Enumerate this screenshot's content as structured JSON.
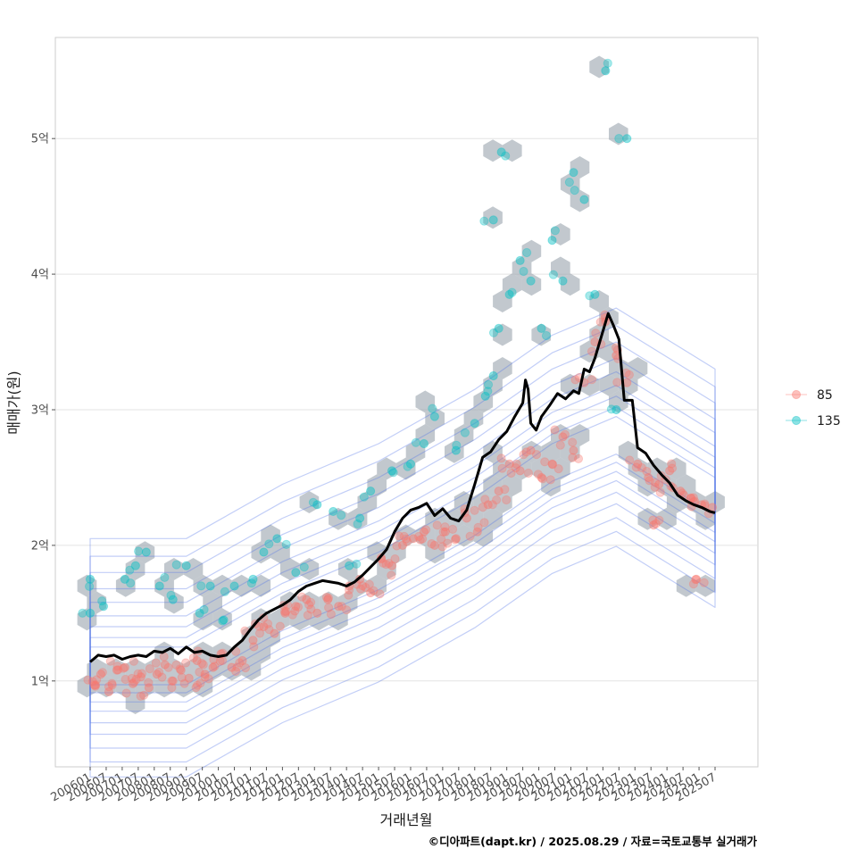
{
  "chart_data": {
    "type": "scatter",
    "xlabel": "거래년월",
    "ylabel": "매매가(원)",
    "caption": "©디아파트(dapt.kr) / 2025.08.29 / 자료=국토교통부 실거래가",
    "x_start": "2006-01",
    "x_end": "2025-07",
    "x_ticks": [
      "200601",
      "200607",
      "200701",
      "200707",
      "200801",
      "200807",
      "200901",
      "200907",
      "201001",
      "201007",
      "201101",
      "201107",
      "201201",
      "201207",
      "201301",
      "201307",
      "201401",
      "201407",
      "201501",
      "201507",
      "201601",
      "201607",
      "201701",
      "201707",
      "201801",
      "201807",
      "201901",
      "201907",
      "202001",
      "202007",
      "202101",
      "202107",
      "202201",
      "202207",
      "202301",
      "202307",
      "202401",
      "202407",
      "202501",
      "202507"
    ],
    "y_ticks": [
      {
        "value": 1,
        "label": "1억"
      },
      {
        "value": 2,
        "label": "2억"
      },
      {
        "value": 3,
        "label": "3억"
      },
      {
        "value": 4,
        "label": "4억"
      },
      {
        "value": 5,
        "label": "5억"
      }
    ],
    "ylim": [
      0.34,
      5.74
    ],
    "ylim_note": "values in 억원",
    "grid": "horizontal",
    "legend_position": "right",
    "series": [
      {
        "name": "85",
        "color": "#F8766D",
        "kind": "points",
        "points": [
          [
            "2006-03",
            0.97
          ],
          [
            "2006-05",
            1.05
          ],
          [
            "2006-08",
            0.92
          ],
          [
            "2006-11",
            1.08
          ],
          [
            "2007-02",
            1.1
          ],
          [
            "2007-05",
            0.98
          ],
          [
            "2007-08",
            1.03
          ],
          [
            "2007-11",
            0.95
          ],
          [
            "2008-02",
            1.05
          ],
          [
            "2008-05",
            1.12
          ],
          [
            "2008-08",
            1.0
          ],
          [
            "2008-11",
            1.08
          ],
          [
            "2009-02",
            1.02
          ],
          [
            "2009-05",
            1.15
          ],
          [
            "2009-08",
            1.05
          ],
          [
            "2009-11",
            1.1
          ],
          [
            "2010-02",
            1.2
          ],
          [
            "2010-06",
            1.1
          ],
          [
            "2010-10",
            1.15
          ],
          [
            "2011-02",
            1.3
          ],
          [
            "2011-06",
            1.4
          ],
          [
            "2011-10",
            1.35
          ],
          [
            "2012-02",
            1.5
          ],
          [
            "2012-06",
            1.55
          ],
          [
            "2012-10",
            1.6
          ],
          [
            "2013-02",
            1.5
          ],
          [
            "2013-06",
            1.6
          ],
          [
            "2013-10",
            1.55
          ],
          [
            "2014-02",
            1.7
          ],
          [
            "2014-06",
            1.75
          ],
          [
            "2014-10",
            1.65
          ],
          [
            "2015-02",
            1.9
          ],
          [
            "2015-06",
            1.85
          ],
          [
            "2015-10",
            2.0
          ],
          [
            "2016-02",
            2.05
          ],
          [
            "2016-06",
            2.1
          ],
          [
            "2016-10",
            2.0
          ],
          [
            "2017-02",
            2.1
          ],
          [
            "2017-06",
            2.05
          ],
          [
            "2017-10",
            2.2
          ],
          [
            "2018-02",
            2.1
          ],
          [
            "2018-06",
            2.3
          ],
          [
            "2018-10",
            2.4
          ],
          [
            "2019-02",
            2.6
          ],
          [
            "2019-06",
            2.55
          ],
          [
            "2019-10",
            2.7
          ],
          [
            "2020-02",
            2.5
          ],
          [
            "2020-06",
            2.6
          ],
          [
            "2020-10",
            2.8
          ],
          [
            "2021-02",
            2.7
          ],
          [
            "2021-06",
            3.2
          ],
          [
            "2021-10",
            3.5
          ],
          [
            "2022-02",
            3.65
          ],
          [
            "2022-06",
            3.4
          ],
          [
            "2022-10",
            3.2
          ],
          [
            "2023-02",
            2.6
          ],
          [
            "2023-06",
            2.5
          ],
          [
            "2023-10",
            2.45
          ],
          [
            "2024-02",
            2.55
          ],
          [
            "2024-06",
            2.4
          ],
          [
            "2024-10",
            2.35
          ],
          [
            "2025-02",
            2.3
          ],
          [
            "2025-06",
            2.28
          ],
          [
            "2024-12",
            1.75
          ],
          [
            "2023-08",
            2.15
          ]
        ]
      },
      {
        "name": "135",
        "color": "#00BFC4",
        "kind": "points",
        "points": [
          [
            "2006-01",
            1.75
          ],
          [
            "2006-01",
            1.5
          ],
          [
            "2006-06",
            1.55
          ],
          [
            "2007-02",
            1.75
          ],
          [
            "2007-06",
            1.85
          ],
          [
            "2007-10",
            1.95
          ],
          [
            "2008-03",
            1.7
          ],
          [
            "2008-08",
            1.6
          ],
          [
            "2009-01",
            1.85
          ],
          [
            "2009-06",
            1.5
          ],
          [
            "2009-10",
            1.7
          ],
          [
            "2010-03",
            1.45
          ],
          [
            "2010-07",
            1.7
          ],
          [
            "2011-02",
            1.75
          ],
          [
            "2011-06",
            1.95
          ],
          [
            "2011-11",
            2.05
          ],
          [
            "2012-06",
            1.8
          ],
          [
            "2013-02",
            2.3
          ],
          [
            "2013-08",
            2.25
          ],
          [
            "2014-02",
            1.85
          ],
          [
            "2014-06",
            2.2
          ],
          [
            "2014-10",
            2.4
          ],
          [
            "2015-06",
            2.55
          ],
          [
            "2016-01",
            2.6
          ],
          [
            "2016-06",
            2.75
          ],
          [
            "2016-10",
            2.95
          ],
          [
            "2017-06",
            2.7
          ],
          [
            "2018-01",
            2.9
          ],
          [
            "2018-05",
            3.1
          ],
          [
            "2018-08",
            3.25
          ],
          [
            "2018-10",
            3.6
          ],
          [
            "2019-02",
            3.85
          ],
          [
            "2019-06",
            4.1
          ],
          [
            "2019-10",
            3.95
          ],
          [
            "2020-02",
            3.6
          ],
          [
            "2020-06",
            4.25
          ],
          [
            "2020-10",
            3.95
          ],
          [
            "2021-02",
            4.75
          ],
          [
            "2021-06",
            4.55
          ],
          [
            "2021-10",
            3.85
          ],
          [
            "2022-02",
            5.5
          ],
          [
            "2022-06",
            3.0
          ],
          [
            "2022-10",
            5.0
          ],
          [
            "2018-08",
            4.4
          ],
          [
            "2018-11",
            4.9
          ]
        ]
      },
      {
        "name": "median",
        "color": "#000000",
        "kind": "line",
        "points": [
          [
            "2006-01",
            1.14
          ],
          [
            "2006-04",
            1.19
          ],
          [
            "2006-07",
            1.18
          ],
          [
            "2006-10",
            1.19
          ],
          [
            "2007-01",
            1.16
          ],
          [
            "2007-04",
            1.18
          ],
          [
            "2007-07",
            1.19
          ],
          [
            "2007-10",
            1.18
          ],
          [
            "2008-01",
            1.22
          ],
          [
            "2008-04",
            1.21
          ],
          [
            "2008-07",
            1.24
          ],
          [
            "2008-10",
            1.2
          ],
          [
            "2009-01",
            1.25
          ],
          [
            "2009-04",
            1.21
          ],
          [
            "2009-07",
            1.22
          ],
          [
            "2009-10",
            1.19
          ],
          [
            "2010-01",
            1.18
          ],
          [
            "2010-04",
            1.19
          ],
          [
            "2010-07",
            1.25
          ],
          [
            "2010-10",
            1.3
          ],
          [
            "2011-01",
            1.38
          ],
          [
            "2011-04",
            1.45
          ],
          [
            "2011-07",
            1.5
          ],
          [
            "2011-10",
            1.53
          ],
          [
            "2012-01",
            1.56
          ],
          [
            "2012-04",
            1.6
          ],
          [
            "2012-07",
            1.66
          ],
          [
            "2012-10",
            1.7
          ],
          [
            "2013-01",
            1.72
          ],
          [
            "2013-04",
            1.74
          ],
          [
            "2013-07",
            1.73
          ],
          [
            "2013-10",
            1.72
          ],
          [
            "2014-01",
            1.7
          ],
          [
            "2014-04",
            1.73
          ],
          [
            "2014-07",
            1.78
          ],
          [
            "2014-10",
            1.84
          ],
          [
            "2015-01",
            1.9
          ],
          [
            "2015-04",
            1.97
          ],
          [
            "2015-07",
            2.1
          ],
          [
            "2015-10",
            2.2
          ],
          [
            "2016-01",
            2.26
          ],
          [
            "2016-04",
            2.28
          ],
          [
            "2016-07",
            2.31
          ],
          [
            "2016-10",
            2.22
          ],
          [
            "2017-01",
            2.27
          ],
          [
            "2017-04",
            2.2
          ],
          [
            "2017-07",
            2.18
          ],
          [
            "2017-10",
            2.26
          ],
          [
            "2018-01",
            2.45
          ],
          [
            "2018-04",
            2.65
          ],
          [
            "2018-07",
            2.69
          ],
          [
            "2018-10",
            2.78
          ],
          [
            "2019-01",
            2.84
          ],
          [
            "2019-04",
            2.95
          ],
          [
            "2019-07",
            3.05
          ],
          [
            "2019-08",
            3.22
          ],
          [
            "2019-09",
            3.15
          ],
          [
            "2019-10",
            2.9
          ],
          [
            "2019-12",
            2.85
          ],
          [
            "2020-02",
            2.95
          ],
          [
            "2020-05",
            3.03
          ],
          [
            "2020-08",
            3.12
          ],
          [
            "2020-11",
            3.08
          ],
          [
            "2021-02",
            3.14
          ],
          [
            "2021-04",
            3.12
          ],
          [
            "2021-06",
            3.3
          ],
          [
            "2021-08",
            3.28
          ],
          [
            "2021-10",
            3.38
          ],
          [
            "2022-01",
            3.58
          ],
          [
            "2022-03",
            3.71
          ],
          [
            "2022-05",
            3.62
          ],
          [
            "2022-07",
            3.52
          ],
          [
            "2022-09",
            3.07
          ],
          [
            "2022-12",
            3.07
          ],
          [
            "2023-02",
            2.72
          ],
          [
            "2023-05",
            2.68
          ],
          [
            "2023-08",
            2.59
          ],
          [
            "2023-11",
            2.52
          ],
          [
            "2024-02",
            2.46
          ],
          [
            "2024-05",
            2.37
          ],
          [
            "2024-08",
            2.33
          ],
          [
            "2024-11",
            2.3
          ],
          [
            "2025-02",
            2.28
          ],
          [
            "2025-05",
            2.25
          ],
          [
            "2025-07",
            2.24
          ]
        ]
      }
    ],
    "density_contour_color": "#4f74e8",
    "hexbin_color": "#9aa4ad"
  }
}
